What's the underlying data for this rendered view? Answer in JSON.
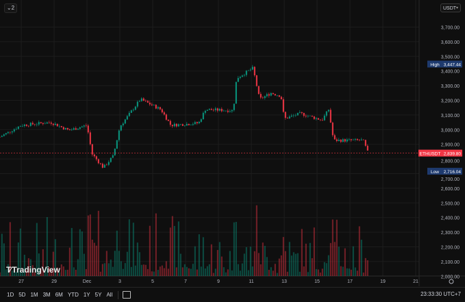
{
  "legend_toggle": {
    "label": "2"
  },
  "currency_select": {
    "value": "USDT"
  },
  "branding": {
    "name": "TradingView"
  },
  "clock": "23:33:30 UTC+7",
  "ranges": [
    "1D",
    "5D",
    "1M",
    "3M",
    "6M",
    "YTD",
    "1Y",
    "5Y",
    "All"
  ],
  "colors": {
    "up": "#089981",
    "down": "#f23645",
    "background": "#0f0f0f",
    "grid": "#1c1c1c",
    "label_blue": "#1e3a6e"
  },
  "chart_data": {
    "type": "candlestick",
    "symbol": "ETHUSDT",
    "y_ticks": [
      "3,700.00",
      "3,600.00",
      "3,500.00",
      "3,400.00",
      "3,300.00",
      "3,200.00",
      "3,100.00",
      "3,000.00",
      "2,900.00",
      "2,800.00",
      "2,700.00",
      "2,600.00",
      "2,500.00",
      "2,400.00",
      "2,300.00",
      "2,200.00",
      "2,100.00",
      "2,000.00"
    ],
    "y_tick_values": [
      3700,
      3600,
      3500,
      3400,
      3300,
      3200,
      3100,
      3000,
      2900,
      2800,
      2700,
      2600,
      2500,
      2400,
      2300,
      2200,
      2100,
      2000
    ],
    "x_ticks": [
      "27",
      "29",
      "Dec",
      "3",
      "5",
      "7",
      "9",
      "11",
      "13",
      "15",
      "17",
      "19",
      "21"
    ],
    "x_tick_days": [
      0,
      2,
      4,
      6,
      8,
      10,
      12,
      14,
      16,
      18,
      20,
      22,
      24
    ],
    "price_path_days_from_nov27": [
      [
        -1.3,
        2950
      ],
      [
        0,
        3030
      ],
      [
        1.8,
        3050
      ],
      [
        2.9,
        2995
      ],
      [
        4.0,
        3030
      ],
      [
        4.3,
        2835
      ],
      [
        5.0,
        2740
      ],
      [
        5.6,
        2820
      ],
      [
        6.0,
        3020
      ],
      [
        7.25,
        3207
      ],
      [
        8.5,
        3137
      ],
      [
        9.1,
        3030
      ],
      [
        10.8,
        3045
      ],
      [
        11.2,
        3137
      ],
      [
        12.9,
        3130
      ],
      [
        13.1,
        3350
      ],
      [
        14.1,
        3420
      ],
      [
        14.5,
        3207
      ],
      [
        15.2,
        3250
      ],
      [
        15.8,
        3230
      ],
      [
        16.0,
        3075
      ],
      [
        17.0,
        3110
      ],
      [
        18.3,
        3065
      ],
      [
        18.7,
        3137
      ],
      [
        19.0,
        2927
      ],
      [
        20.8,
        2927
      ],
      [
        21.1,
        2840
      ]
    ],
    "high": {
      "label": "High",
      "value": "3,447.44",
      "price": 3447.44
    },
    "last": {
      "label": "ETHUSDT",
      "value": "2,839.80",
      "price": 2839.8
    },
    "low": {
      "label": "Low",
      "value": "2,716.04",
      "price": 2716.04
    }
  }
}
